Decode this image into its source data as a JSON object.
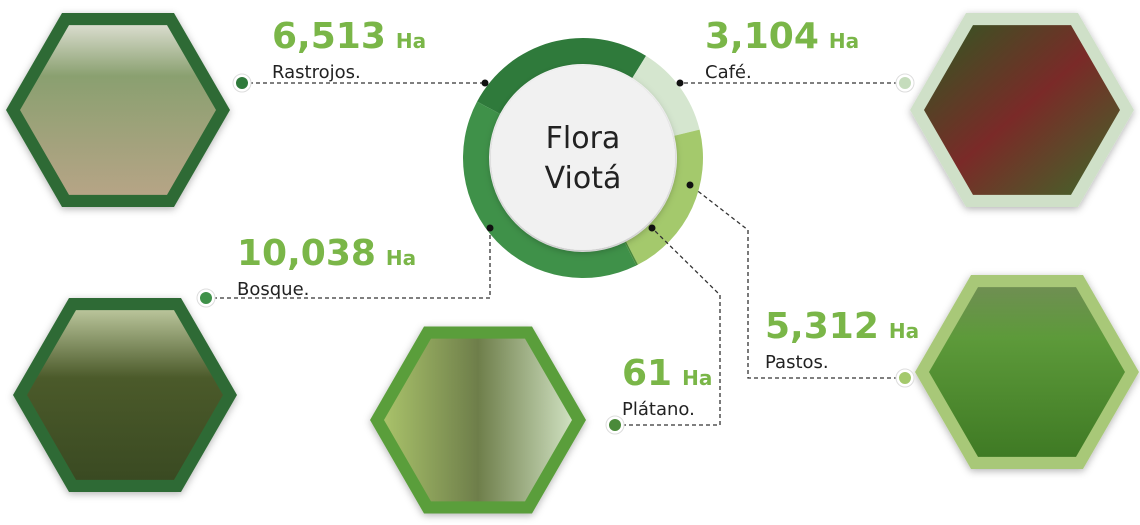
{
  "chart_data": {
    "type": "donut",
    "center_label": [
      "Flora",
      "Viotá"
    ],
    "categories": [
      "Rastrojos.",
      "Café.",
      "Pastos.",
      "Plátano.",
      "Bosque."
    ],
    "values": [
      6513,
      3104,
      5312,
      61,
      10038
    ],
    "value_labels": [
      "6,513",
      "3,104",
      "5,312",
      "61",
      "10,038"
    ],
    "unit": "Ha",
    "colors": [
      "#2f7a3b",
      "#d5e6cf",
      "#a4c96c",
      "#4a8a3a",
      "#3f9149"
    ]
  }
}
